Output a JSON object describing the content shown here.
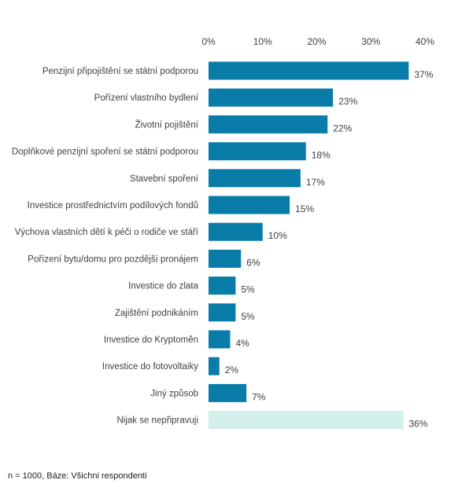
{
  "chart_data": {
    "type": "bar",
    "orientation": "horizontal",
    "categories": [
      "Penzijní připojištění se státní podporou",
      "Pořízení vlastního bydlení",
      "Životní pojištění",
      "Doplňkové penzijní spoření se státní podporou",
      "Stavební spoření",
      "Investice prostřednictvím podílových fondů",
      "Výchova vlastních dětí k péči o rodiče ve stáří",
      "Pořízení bytu/domu pro pozdější pronájem",
      "Investice do zlata",
      "Zajištění podnikáním",
      "Investice do Kryptoměn",
      "Investice do fotovoltaiky",
      "Jiný způsob",
      "Nijak se nepřipravuji"
    ],
    "values": [
      37,
      23,
      22,
      18,
      17,
      15,
      10,
      6,
      5,
      5,
      4,
      2,
      7,
      36
    ],
    "value_labels": [
      "37%",
      "23%",
      "22%",
      "18%",
      "17%",
      "15%",
      "10%",
      "6%",
      "5%",
      "5%",
      "4%",
      "2%",
      "7%",
      "36%"
    ],
    "xlim": [
      0,
      40
    ],
    "x_ticks": [
      0,
      10,
      20,
      30,
      40
    ],
    "x_tick_labels": [
      "0%",
      "10%",
      "20%",
      "30%",
      "40%"
    ],
    "x_axis_position": "top",
    "grid": false,
    "colors": {
      "primary": "#0a7ca8",
      "highlight": "#d2efe9",
      "text": "#404040"
    },
    "bar_colors": [
      "primary",
      "primary",
      "primary",
      "primary",
      "primary",
      "primary",
      "primary",
      "primary",
      "primary",
      "primary",
      "primary",
      "primary",
      "primary",
      "highlight"
    ]
  },
  "footnote": "n = 1000, Báze: Všichni respondenti"
}
